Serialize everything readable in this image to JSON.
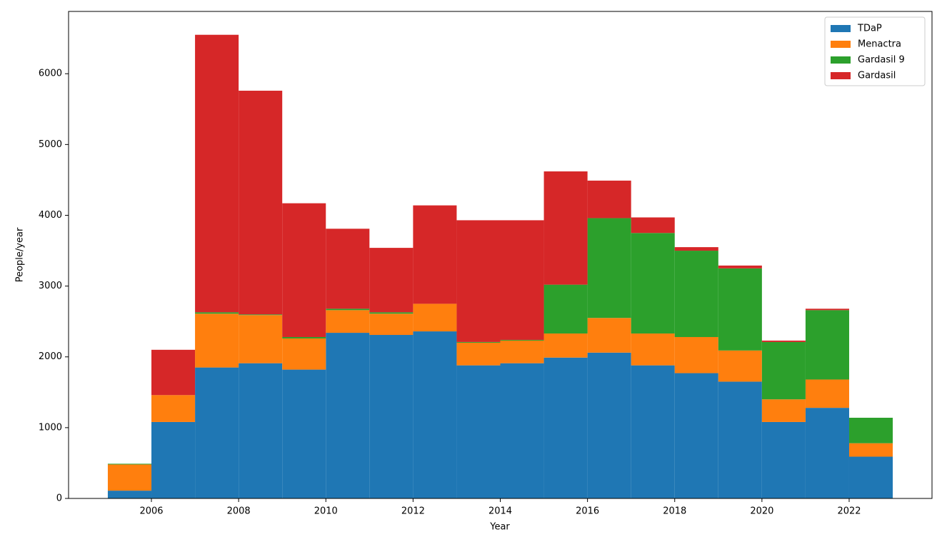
{
  "chart_data": {
    "type": "histogram",
    "stacked": true,
    "xlabel": "Year",
    "ylabel": "People/year",
    "bins": [
      2005,
      2006,
      2007,
      2008,
      2009,
      2010,
      2011,
      2012,
      2013,
      2014,
      2015,
      2016,
      2017,
      2018,
      2019,
      2020,
      2021,
      2022,
      2023
    ],
    "series": [
      {
        "name": "TDaP",
        "color": "#1f77b4",
        "values": [
          110,
          1080,
          1850,
          1910,
          1820,
          2340,
          2310,
          2360,
          1880,
          1910,
          1990,
          2060,
          1880,
          1770,
          1650,
          1080,
          1280,
          590
        ]
      },
      {
        "name": "Menactra",
        "color": "#ff7f0e",
        "values": [
          370,
          380,
          760,
          680,
          440,
          320,
          300,
          390,
          320,
          320,
          340,
          490,
          450,
          510,
          440,
          320,
          400,
          190
        ]
      },
      {
        "name": "Gardasil 9",
        "color": "#2ca02c",
        "values": [
          10,
          0,
          20,
          10,
          20,
          20,
          20,
          0,
          10,
          10,
          690,
          1410,
          1420,
          1220,
          1160,
          810,
          980,
          360
        ]
      },
      {
        "name": "Gardasil",
        "color": "#d62728",
        "values": [
          0,
          640,
          3920,
          3160,
          1890,
          1130,
          910,
          1390,
          1720,
          1690,
          1600,
          530,
          220,
          50,
          40,
          20,
          20,
          0
        ]
      }
    ],
    "xlim": [
      2004.1,
      2023.9
    ],
    "xticks": [
      2006,
      2008,
      2010,
      2012,
      2014,
      2016,
      2018,
      2020,
      2022
    ],
    "ylim": [
      0,
      6880
    ],
    "yticks": [
      0,
      1000,
      2000,
      3000,
      4000,
      5000,
      6000
    ],
    "legend": "upper right"
  }
}
